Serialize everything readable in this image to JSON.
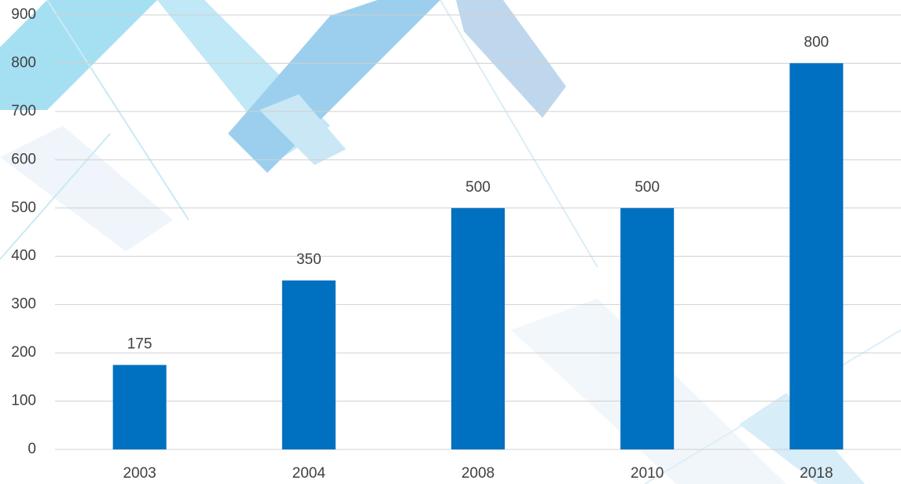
{
  "chart_data": {
    "type": "bar",
    "categories": [
      "2003",
      "2004",
      "2008",
      "2010",
      "2018"
    ],
    "values": [
      175,
      350,
      500,
      500,
      800
    ],
    "color": "#0070c0",
    "ylim": [
      0,
      900
    ],
    "yticks": [
      0,
      100,
      200,
      300,
      400,
      500,
      600,
      700,
      800,
      900
    ],
    "grid": true
  }
}
